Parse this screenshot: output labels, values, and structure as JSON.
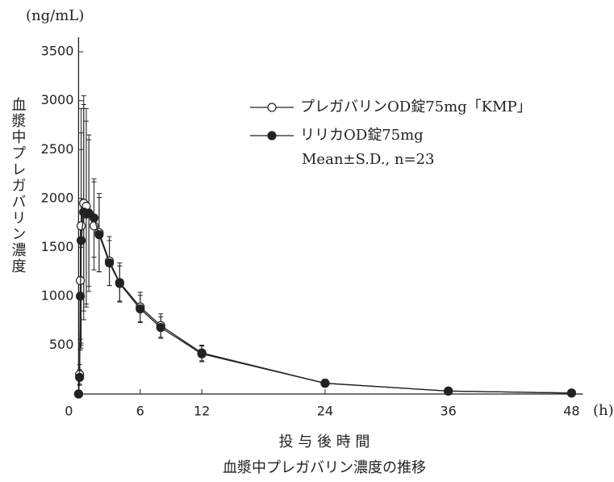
{
  "chart_data": {
    "type": "line",
    "caption": "血漿中プレガバリン濃度の推移",
    "x_label": "投 与 後 時 間",
    "x_unit": "(h)",
    "y_label": "血漿中プレガバリン濃度",
    "y_unit": "(ng/mL)",
    "annotation": "Mean±S.D., n=23",
    "x": [
      0,
      0.1,
      0.17,
      0.25,
      0.5,
      0.75,
      1,
      1.5,
      2,
      3,
      4,
      6,
      8,
      12,
      24,
      36,
      48
    ],
    "series": [
      {
        "name": "プレガバリンOD錠75mg「KMP」",
        "color": "#222",
        "marker_fill": "#fff",
        "values": [
          0,
          200,
          1160,
          1720,
          1950,
          1920,
          1850,
          1720,
          1650,
          1360,
          1140,
          890,
          700,
          420,
          110,
          30,
          10
        ],
        "errors": [
          0,
          100,
          600,
          1200,
          1100,
          1000,
          800,
          450,
          400,
          250,
          200,
          150,
          120,
          80,
          40,
          15,
          5
        ]
      },
      {
        "name": "リリカOD錠75mg",
        "color": "#222",
        "marker_fill": "#222",
        "values": [
          0,
          170,
          1000,
          1570,
          1860,
          1840,
          1850,
          1800,
          1630,
          1340,
          1130,
          870,
          680,
          410,
          110,
          30,
          10
        ],
        "errors": [
          0,
          80,
          550,
          1100,
          1100,
          950,
          750,
          400,
          380,
          230,
          180,
          140,
          110,
          80,
          40,
          15,
          5
        ]
      }
    ],
    "xlim": [
      0,
      48
    ],
    "xticks": [
      0,
      6,
      12,
      24,
      36,
      48
    ],
    "ylim": [
      0,
      3650
    ],
    "yticks": [
      500,
      1000,
      1500,
      2000,
      2500,
      3000,
      3500
    ]
  }
}
